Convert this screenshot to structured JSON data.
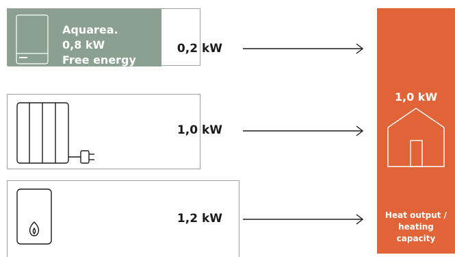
{
  "sources": [
    {
      "unit_label_lines": [
        "Aquarea.",
        "0,8 kW",
        "Free energy"
      ],
      "output": "0,2 kW",
      "icon": "heat-pump-unit-icon"
    },
    {
      "output": "1,0 kW",
      "icon": "electric-radiator-icon"
    },
    {
      "output": "1,2 kW",
      "icon": "gas-boiler-icon"
    }
  ],
  "result": {
    "output": "1,0 kW",
    "caption_lines": [
      "Heat output /",
      "heating",
      "capacity"
    ],
    "icon": "house-icon"
  },
  "colors": {
    "aquarea_fill": "#8ba090",
    "result_panel": "#e06437",
    "border": "#a0a0a0"
  }
}
